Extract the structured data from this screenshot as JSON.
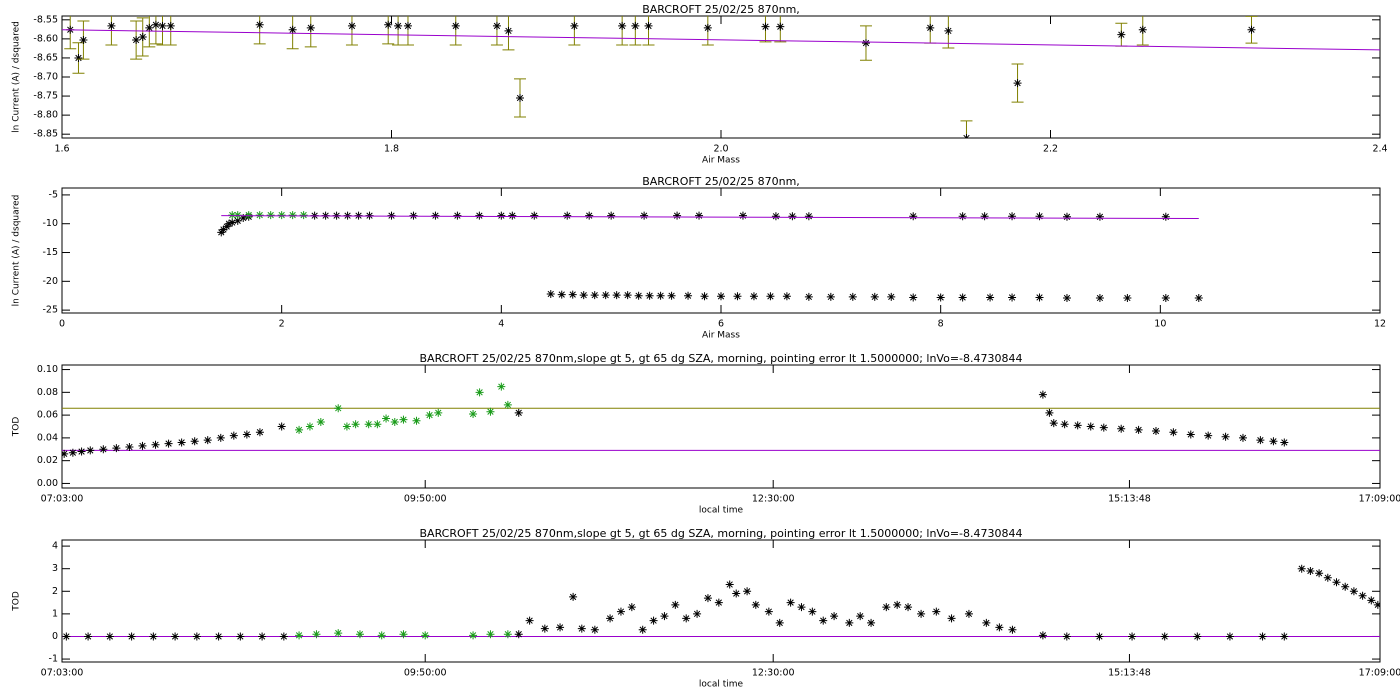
{
  "chart_data": [
    {
      "type": "scatter",
      "title": "BARCROFT 25/02/25 870nm,",
      "xlabel": "Air Mass",
      "ylabel": "ln Current (A) / dsquared",
      "xlim": [
        1.6,
        2.4
      ],
      "xticks": [
        1.6,
        1.8,
        {
          "value": 2.0,
          "label": "2.0"
        },
        2.2,
        2.4
      ],
      "ylim": [
        -8.86,
        -8.54
      ],
      "yticks": [
        -8.55,
        {
          "value": -8.6,
          "label": "-8.60"
        },
        -8.65,
        {
          "value": -8.7,
          "label": "-8.70"
        },
        -8.75,
        {
          "value": -8.8,
          "label": "-8.80"
        },
        -8.85
      ],
      "series": [
        {
          "marker": "star",
          "color": "#000000",
          "error_color": "#808000",
          "x": [
            1.605,
            1.61,
            1.613,
            1.63,
            1.645,
            1.649,
            1.653,
            1.657,
            1.661,
            1.666,
            1.72,
            1.74,
            1.751,
            1.776,
            1.798,
            1.804,
            1.81,
            1.839,
            1.864,
            1.871,
            1.878,
            1.911,
            1.94,
            1.948,
            1.956,
            1.992,
            2.027,
            2.036,
            2.088,
            2.127,
            2.138,
            2.149,
            2.18,
            2.243,
            2.256,
            2.322
          ],
          "values": [
            -8.576,
            -8.65,
            -8.603,
            -8.566,
            -8.603,
            -8.595,
            -8.571,
            -8.563,
            -8.566,
            -8.566,
            -8.563,
            -8.576,
            -8.571,
            -8.566,
            -8.563,
            -8.566,
            -8.566,
            -8.566,
            -8.566,
            -8.579,
            -8.755,
            -8.566,
            -8.566,
            -8.566,
            -8.566,
            -8.571,
            -8.568,
            -8.568,
            -8.611,
            -8.571,
            -8.579,
            -8.86,
            -8.716,
            -8.589,
            -8.576,
            -8.576
          ],
          "errors": [
            0.05,
            0.04,
            0.05,
            0.05,
            0.05,
            0.05,
            0.05,
            0.05,
            0.05,
            0.05,
            0.05,
            0.05,
            0.05,
            0.05,
            0.05,
            0.05,
            0.05,
            0.05,
            0.05,
            0.05,
            0.05,
            0.05,
            0.05,
            0.05,
            0.05,
            0.045,
            0.04,
            0.04,
            0.045,
            0.04,
            0.045,
            0.045,
            0.05,
            0.03,
            0.04,
            0.035
          ]
        },
        {
          "marker": "line",
          "color": "#9900cc",
          "x": [
            1.6,
            2.4
          ],
          "values": [
            -8.576,
            -8.629
          ]
        }
      ]
    },
    {
      "type": "scatter",
      "title": "BARCROFT 25/02/25 870nm,",
      "xlabel": "Air Mass",
      "ylabel": "ln Current (A) / dsquared",
      "xlim": [
        0,
        12
      ],
      "xticks": [
        0,
        2,
        4,
        6,
        8,
        10,
        12
      ],
      "ylim": [
        -25.5,
        -3.8
      ],
      "yticks": [
        -5,
        -10,
        -15,
        -20,
        -25
      ],
      "series": [
        {
          "marker": "star",
          "color": "#000000",
          "x": [
            1.45,
            1.47,
            1.5,
            1.52,
            1.55,
            1.6,
            1.65,
            1.7,
            2.3,
            2.4,
            2.5,
            2.6,
            2.7,
            2.8,
            3.0,
            3.2,
            3.4,
            3.6,
            3.8,
            4.0,
            4.1,
            4.3,
            4.6,
            4.8,
            5.0,
            5.3,
            5.6,
            5.8,
            6.2,
            6.5,
            6.65,
            6.8,
            7.75,
            8.2,
            8.4,
            8.65,
            8.9,
            9.15,
            9.45,
            10.05
          ],
          "values": [
            -11.5,
            -11,
            -10.5,
            -10,
            -9.8,
            -9.5,
            -9,
            -8.8,
            -8.6,
            -8.6,
            -8.6,
            -8.6,
            -8.6,
            -8.6,
            -8.6,
            -8.6,
            -8.6,
            -8.6,
            -8.6,
            -8.6,
            -8.6,
            -8.6,
            -8.6,
            -8.6,
            -8.6,
            -8.6,
            -8.6,
            -8.6,
            -8.6,
            -8.7,
            -8.7,
            -8.7,
            -8.7,
            -8.7,
            -8.7,
            -8.7,
            -8.7,
            -8.8,
            -8.8,
            -8.8
          ]
        },
        {
          "marker": "star",
          "color": "#1a9c1a",
          "x": [
            1.55,
            1.6,
            1.7,
            1.8,
            1.9,
            2.0,
            2.1,
            2.2
          ],
          "values": [
            -8.5,
            -8.5,
            -8.5,
            -8.5,
            -8.5,
            -8.5,
            -8.5,
            -8.5
          ]
        },
        {
          "marker": "star",
          "color": "#000000",
          "x": [
            4.45,
            4.55,
            4.65,
            4.75,
            4.85,
            4.95,
            5.05,
            5.15,
            5.25,
            5.35,
            5.45,
            5.55,
            5.7,
            5.85,
            6.0,
            6.15,
            6.3,
            6.45,
            6.6,
            6.8,
            7.0,
            7.2,
            7.4,
            7.55,
            7.75,
            8.0,
            8.2,
            8.45,
            8.65,
            8.9,
            9.15,
            9.45,
            9.7,
            10.05,
            10.35
          ],
          "values": [
            -22.2,
            -22.3,
            -22.3,
            -22.4,
            -22.4,
            -22.4,
            -22.4,
            -22.4,
            -22.5,
            -22.5,
            -22.5,
            -22.5,
            -22.5,
            -22.6,
            -22.6,
            -22.6,
            -22.6,
            -22.6,
            -22.6,
            -22.7,
            -22.7,
            -22.7,
            -22.7,
            -22.7,
            -22.8,
            -22.8,
            -22.8,
            -22.8,
            -22.8,
            -22.8,
            -22.9,
            -22.9,
            -22.9,
            -22.9,
            -22.9
          ]
        },
        {
          "marker": "line",
          "color": "#9900cc",
          "x": [
            1.45,
            10.35
          ],
          "values": [
            -8.6,
            -9.1
          ]
        }
      ]
    },
    {
      "type": "scatter",
      "time_axis": true,
      "title": "BARCROFT 25/02/25 870nm,slope gt 5, gt 65 dg SZA, morning, pointing error lt 1.5000000; lnVo=-8.4730844",
      "xlabel": "local time",
      "ylabel": "TOD",
      "xlim": [
        "07:03:00",
        "17:09:00"
      ],
      "xticks": [
        "07:03:00",
        "09:50:00",
        "12:30:00",
        "15:13:48",
        "17:09:00"
      ],
      "ylim": [
        -0.004,
        0.104
      ],
      "yticks": [
        {
          "value": 0,
          "label": "0.00"
        },
        {
          "value": 0.02,
          "label": "0.02"
        },
        {
          "value": 0.04,
          "label": "0.04"
        },
        {
          "value": 0.06,
          "label": "0.06"
        },
        {
          "value": 0.08,
          "label": "0.08"
        },
        {
          "value": 0.1,
          "label": "0.10"
        }
      ],
      "hlines": [
        {
          "value": 0.066,
          "color": "#808000"
        },
        {
          "value": 0.029,
          "color": "#9900cc"
        }
      ],
      "series": [
        {
          "marker": "star",
          "color": "#000000",
          "x": [
            "07:04",
            "07:08",
            "07:12",
            "07:16",
            "07:22",
            "07:28",
            "07:34",
            "07:40",
            "07:46",
            "07:52",
            "07:58",
            "08:04",
            "08:10",
            "08:16",
            "08:22",
            "08:28",
            "08:34",
            "08:44",
            "10:33",
            "14:34",
            "14:37",
            "14:39",
            "14:44",
            "14:50",
            "14:56",
            "15:02",
            "15:10",
            "15:18",
            "15:26",
            "15:34",
            "15:42",
            "15:50",
            "15:58",
            "16:06",
            "16:14",
            "16:20",
            "16:25"
          ],
          "values": [
            0.026,
            0.027,
            0.028,
            0.029,
            0.03,
            0.031,
            0.032,
            0.033,
            0.034,
            0.035,
            0.036,
            0.037,
            0.038,
            0.04,
            0.042,
            0.043,
            0.045,
            0.05,
            0.062,
            0.078,
            0.062,
            0.053,
            0.052,
            0.051,
            0.05,
            0.049,
            0.048,
            0.047,
            0.046,
            0.045,
            0.043,
            0.042,
            0.041,
            0.04,
            0.038,
            0.037,
            0.036
          ]
        },
        {
          "marker": "star",
          "color": "#1a9c1a",
          "x": [
            "08:52",
            "08:57",
            "09:02",
            "09:10",
            "09:14",
            "09:18",
            "09:24",
            "09:28",
            "09:32",
            "09:36",
            "09:40",
            "09:46",
            "09:52",
            "09:56",
            "10:12",
            "10:15",
            "10:20",
            "10:25",
            "10:28"
          ],
          "values": [
            0.047,
            0.05,
            0.054,
            0.066,
            0.05,
            0.052,
            0.052,
            0.052,
            0.057,
            0.054,
            0.056,
            0.055,
            0.06,
            0.062,
            0.061,
            0.08,
            0.063,
            0.085,
            0.069
          ]
        }
      ]
    },
    {
      "type": "scatter",
      "time_axis": true,
      "title": "BARCROFT 25/02/25 870nm,slope gt 5, gt 65 dg SZA, morning, pointing error lt 1.5000000; lnVo=-8.4730844",
      "xlabel": "local time",
      "ylabel": "TOD",
      "xlim": [
        "07:03:00",
        "17:09:00"
      ],
      "xticks": [
        "07:03:00",
        "09:50:00",
        "12:30:00",
        "15:13:48",
        "17:09:00"
      ],
      "ylim": [
        -1.13,
        4.27
      ],
      "yticks": [
        -1,
        0,
        1,
        2,
        3,
        4
      ],
      "hlines": [
        {
          "value": 0,
          "color": "#808000"
        },
        {
          "value": 0,
          "color": "#9900cc"
        }
      ],
      "series": [
        {
          "marker": "star",
          "color": "#000000",
          "x": [
            "07:05",
            "07:15",
            "07:25",
            "07:35",
            "07:45",
            "07:55",
            "08:05",
            "08:15",
            "08:25",
            "08:35",
            "08:45",
            "10:33",
            "10:38",
            "10:45",
            "10:52",
            "10:58",
            "11:02",
            "11:08",
            "11:15",
            "11:20",
            "11:25",
            "11:30",
            "11:35",
            "11:40",
            "11:45",
            "11:50",
            "11:55",
            "12:00",
            "12:05",
            "12:10",
            "12:13",
            "12:18",
            "12:22",
            "12:28",
            "12:33",
            "12:38",
            "12:43",
            "12:48",
            "12:53",
            "12:58",
            "13:05",
            "13:10",
            "13:15",
            "13:22",
            "13:27",
            "13:32",
            "13:38",
            "13:45",
            "13:52",
            "14:00",
            "14:08",
            "14:14",
            "14:20",
            "14:34",
            "14:45",
            "15:00",
            "15:15",
            "15:30",
            "15:45",
            "16:00",
            "16:15",
            "16:25",
            "16:33",
            "16:37",
            "16:41",
            "16:45",
            "16:49",
            "16:53",
            "16:57",
            "17:01",
            "17:05",
            "17:08"
          ],
          "values": [
            0,
            0,
            0,
            0,
            0,
            0,
            0,
            0,
            0,
            0,
            0,
            0.1,
            0.7,
            0.35,
            0.4,
            1.75,
            0.35,
            0.3,
            0.8,
            1.1,
            1.3,
            0.3,
            0.7,
            0.9,
            1.4,
            0.8,
            1.0,
            1.7,
            1.5,
            2.3,
            1.9,
            2.0,
            1.4,
            1.1,
            0.6,
            1.5,
            1.3,
            1.1,
            0.7,
            0.9,
            0.6,
            0.9,
            0.6,
            1.3,
            1.4,
            1.3,
            1.0,
            1.1,
            0.8,
            1.0,
            0.6,
            0.4,
            0.3,
            0.05,
            0,
            0,
            0,
            0,
            0,
            0,
            0,
            0,
            3.0,
            2.9,
            2.8,
            2.6,
            2.4,
            2.2,
            2.0,
            1.8,
            1.6,
            1.4
          ]
        },
        {
          "marker": "star",
          "color": "#1a9c1a",
          "x": [
            "08:52",
            "09:00",
            "09:10",
            "09:20",
            "09:30",
            "09:40",
            "09:50",
            "10:12",
            "10:20",
            "10:28"
          ],
          "values": [
            0.05,
            0.1,
            0.15,
            0.1,
            0.05,
            0.1,
            0.05,
            0.05,
            0.1,
            0.1
          ]
        }
      ]
    }
  ]
}
